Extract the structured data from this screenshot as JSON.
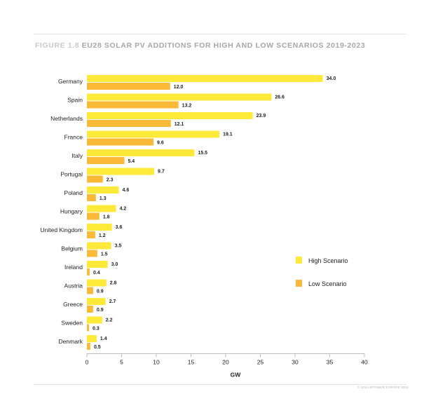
{
  "figure": {
    "number": "FIGURE 1.8",
    "title": "EU28 SOLAR PV ADDITIONS FOR HIGH AND LOW SCENARIOS 2019-2023",
    "footer": "© SOLARPOWER EUROPE 2019"
  },
  "colors": {
    "high": "#fde93a",
    "low": "#fbb938",
    "axis": "#bdbdbd",
    "text": "#222222"
  },
  "chart_data": {
    "type": "bar",
    "orientation": "horizontal",
    "xlabel": "GW",
    "ylabel": "",
    "xlim": [
      0,
      40
    ],
    "xticks": [
      0,
      5,
      10,
      15,
      20,
      25,
      30,
      35,
      40
    ],
    "grid": false,
    "legend_position": "right",
    "categories": [
      "Germany",
      "Spain",
      "Netherlands",
      "France",
      "Italy",
      "Portugal",
      "Poland",
      "Hungary",
      "United Kingdom",
      "Belgium",
      "Ireland",
      "Austria",
      "Greece",
      "Sweden",
      "Denmark"
    ],
    "series": [
      {
        "name": "High Scenario",
        "values": [
          34.0,
          26.6,
          23.9,
          19.1,
          15.5,
          9.7,
          4.6,
          4.2,
          3.6,
          3.5,
          3.0,
          2.8,
          2.7,
          2.2,
          1.4
        ]
      },
      {
        "name": "Low Scenario",
        "values": [
          12.0,
          13.2,
          12.1,
          9.6,
          5.4,
          2.3,
          1.3,
          1.8,
          1.2,
          1.5,
          0.4,
          0.9,
          0.9,
          0.3,
          0.5
        ]
      }
    ]
  }
}
